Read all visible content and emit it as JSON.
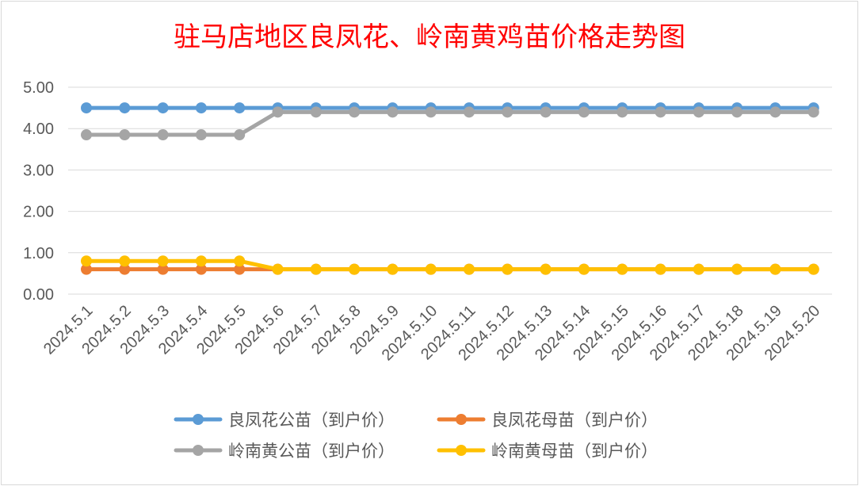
{
  "chart_data": {
    "type": "line",
    "title": "驻马店地区良凤花、岭南黄鸡苗价格走势图",
    "categories": [
      "2024.5.1",
      "2024.5.2",
      "2024.5.3",
      "2024.5.4",
      "2024.5.5",
      "2024.5.6",
      "2024.5.7",
      "2024.5.8",
      "2024.5.9",
      "2024.5.10",
      "2024.5.11",
      "2024.5.12",
      "2024.5.13",
      "2024.5.14",
      "2024.5.15",
      "2024.5.16",
      "2024.5.17",
      "2024.5.18",
      "2024.5.19",
      "2024.5.20"
    ],
    "y_ticks": [
      "0.00",
      "1.00",
      "2.00",
      "3.00",
      "4.00",
      "5.00"
    ],
    "ylim": [
      0,
      5
    ],
    "grid": true,
    "legend_position": "bottom",
    "series": [
      {
        "name": "良凤花公苗（到户价）",
        "color": "#5B9BD5",
        "values": [
          4.5,
          4.5,
          4.5,
          4.5,
          4.5,
          4.5,
          4.5,
          4.5,
          4.5,
          4.5,
          4.5,
          4.5,
          4.5,
          4.5,
          4.5,
          4.5,
          4.5,
          4.5,
          4.5,
          4.5
        ]
      },
      {
        "name": "良凤花母苗（到户价）",
        "color": "#ED7D31",
        "values": [
          0.6,
          0.6,
          0.6,
          0.6,
          0.6,
          0.6,
          0.6,
          0.6,
          0.6,
          0.6,
          0.6,
          0.6,
          0.6,
          0.6,
          0.6,
          0.6,
          0.6,
          0.6,
          0.6,
          0.6
        ]
      },
      {
        "name": "岭南黄公苗（到户价）",
        "color": "#A5A5A5",
        "values": [
          3.85,
          3.85,
          3.85,
          3.85,
          3.85,
          4.4,
          4.4,
          4.4,
          4.4,
          4.4,
          4.4,
          4.4,
          4.4,
          4.4,
          4.4,
          4.4,
          4.4,
          4.4,
          4.4,
          4.4
        ]
      },
      {
        "name": "岭南黄母苗（到户价）",
        "color": "#FFC000",
        "values": [
          0.8,
          0.8,
          0.8,
          0.8,
          0.8,
          0.6,
          0.6,
          0.6,
          0.6,
          0.6,
          0.6,
          0.6,
          0.6,
          0.6,
          0.6,
          0.6,
          0.6,
          0.6,
          0.6,
          0.6
        ]
      }
    ]
  }
}
